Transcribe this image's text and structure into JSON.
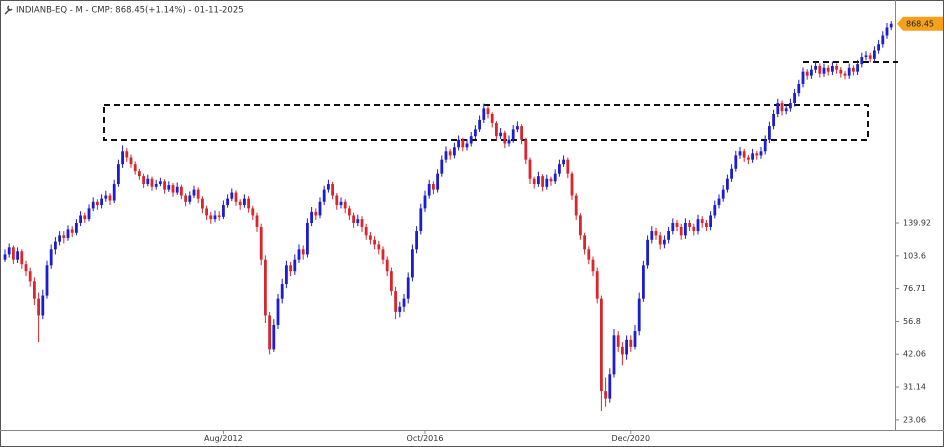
{
  "chart_data": {
    "type": "candlestick",
    "title": "INDIANB-EQ - M - CMP: 868.45(+1.14%) - 01-11-2025",
    "log_scale": true,
    "up_color": "#1c1cd0",
    "down_color": "#d8262c",
    "last_price_color": "#f5a11a",
    "ylim": [
      21.4,
      1060
    ],
    "yticks": [
      23.06,
      31.14,
      42.06,
      56.8,
      76.71,
      103.6,
      139.92
    ],
    "categories": [
      null,
      null,
      null,
      null,
      null,
      null,
      null,
      null,
      null,
      null,
      null,
      null,
      null,
      null,
      null,
      null,
      null,
      null,
      null,
      null,
      null,
      null,
      null,
      null,
      null,
      null,
      null,
      null,
      null,
      null,
      null,
      null,
      null,
      null,
      null,
      null,
      null,
      null,
      null,
      null,
      null,
      null,
      null,
      null,
      null,
      null,
      null,
      null,
      null,
      null,
      null,
      null,
      "Aug/2012",
      null,
      null,
      null,
      null,
      null,
      null,
      null,
      null,
      null,
      null,
      null,
      null,
      null,
      null,
      null,
      null,
      null,
      null,
      null,
      null,
      null,
      null,
      null,
      null,
      null,
      null,
      null,
      null,
      null,
      null,
      null,
      null,
      null,
      null,
      null,
      null,
      null,
      null,
      null,
      null,
      null,
      null,
      null,
      null,
      null,
      null,
      null,
      "Oct/2016",
      null,
      null,
      null,
      null,
      null,
      null,
      null,
      null,
      null,
      null,
      null,
      null,
      null,
      null,
      null,
      null,
      null,
      null,
      null,
      null,
      null,
      null,
      null,
      null,
      null,
      null,
      null,
      null,
      null,
      null,
      null,
      null,
      null,
      null,
      null,
      null,
      null,
      null,
      null,
      null,
      null,
      null,
      null,
      null,
      null,
      null,
      null,
      null,
      "Dec/2020",
      null,
      null,
      null,
      null,
      null,
      null,
      null,
      null,
      null,
      null,
      null,
      null,
      null,
      null,
      null,
      null,
      null,
      null,
      null,
      null,
      null,
      null,
      null,
      null,
      null,
      null,
      null,
      null,
      null,
      null,
      null,
      null,
      null,
      null,
      null,
      null,
      null,
      null,
      null,
      null,
      null,
      null,
      null,
      null,
      null,
      null,
      null,
      null,
      null,
      null,
      null,
      null,
      null,
      null,
      null,
      null,
      null,
      null
    ],
    "ohlc": [
      [
        100,
        110,
        98,
        105
      ],
      [
        105,
        116,
        102,
        112
      ],
      [
        112,
        114,
        96,
        100
      ],
      [
        100,
        112,
        97,
        108
      ],
      [
        108,
        110,
        92,
        96
      ],
      [
        96,
        99,
        86,
        90
      ],
      [
        90,
        93,
        78,
        82
      ],
      [
        82,
        85,
        66,
        70
      ],
      [
        70,
        74,
        47,
        60
      ],
      [
        60,
        76,
        58,
        72
      ],
      [
        72,
        99,
        70,
        95
      ],
      [
        95,
        115,
        92,
        110
      ],
      [
        110,
        123,
        105,
        118
      ],
      [
        118,
        130,
        114,
        125
      ],
      [
        125,
        130,
        116,
        122
      ],
      [
        122,
        137,
        119,
        132
      ],
      [
        132,
        136,
        123,
        128
      ],
      [
        128,
        145,
        125,
        140
      ],
      [
        140,
        156,
        136,
        150
      ],
      [
        150,
        154,
        140,
        145
      ],
      [
        145,
        166,
        142,
        160
      ],
      [
        160,
        177,
        156,
        170
      ],
      [
        170,
        174,
        158,
        165
      ],
      [
        165,
        182,
        160,
        175
      ],
      [
        175,
        188,
        170,
        180
      ],
      [
        180,
        184,
        165,
        172
      ],
      [
        172,
        208,
        168,
        200
      ],
      [
        200,
        250,
        195,
        240
      ],
      [
        240,
        285,
        232,
        270
      ],
      [
        270,
        278,
        245,
        255
      ],
      [
        255,
        262,
        232,
        240
      ],
      [
        240,
        246,
        218,
        225
      ],
      [
        225,
        230,
        208,
        215
      ],
      [
        215,
        220,
        193,
        200
      ],
      [
        200,
        218,
        196,
        210
      ],
      [
        210,
        214,
        188,
        195
      ],
      [
        195,
        208,
        190,
        200
      ],
      [
        200,
        212,
        196,
        205
      ],
      [
        205,
        209,
        183,
        190
      ],
      [
        190,
        205,
        186,
        198
      ],
      [
        198,
        202,
        178,
        185
      ],
      [
        185,
        203,
        181,
        195
      ],
      [
        195,
        199,
        174,
        180
      ],
      [
        180,
        184,
        163,
        170
      ],
      [
        170,
        187,
        166,
        180
      ],
      [
        180,
        197,
        176,
        190
      ],
      [
        190,
        194,
        168,
        175
      ],
      [
        175,
        179,
        153,
        160
      ],
      [
        160,
        164,
        144,
        150
      ],
      [
        150,
        155,
        139,
        145
      ],
      [
        145,
        157,
        141,
        150
      ],
      [
        150,
        156,
        143,
        148
      ],
      [
        148,
        172,
        145,
        165
      ],
      [
        165,
        182,
        161,
        175
      ],
      [
        175,
        192,
        171,
        185
      ],
      [
        185,
        189,
        164,
        170
      ],
      [
        170,
        174,
        158,
        165
      ],
      [
        165,
        182,
        161,
        175
      ],
      [
        175,
        179,
        154,
        160
      ],
      [
        160,
        164,
        144,
        150
      ],
      [
        150,
        154,
        129,
        135
      ],
      [
        135,
        139,
        95,
        100
      ],
      [
        100,
        104,
        56,
        60
      ],
      [
        60,
        62,
        42,
        44
      ],
      [
        44,
        58,
        43,
        55
      ],
      [
        55,
        73,
        53,
        70
      ],
      [
        70,
        84,
        67,
        80
      ],
      [
        80,
        99,
        77,
        95
      ],
      [
        95,
        98,
        86,
        90
      ],
      [
        90,
        105,
        87,
        100
      ],
      [
        100,
        115,
        97,
        110
      ],
      [
        110,
        114,
        100,
        105
      ],
      [
        105,
        146,
        102,
        140
      ],
      [
        140,
        162,
        136,
        155
      ],
      [
        155,
        160,
        144,
        150
      ],
      [
        150,
        177,
        146,
        170
      ],
      [
        170,
        197,
        165,
        190
      ],
      [
        190,
        208,
        185,
        200
      ],
      [
        200,
        204,
        174,
        180
      ],
      [
        180,
        184,
        158,
        165
      ],
      [
        165,
        177,
        160,
        170
      ],
      [
        170,
        174,
        153,
        160
      ],
      [
        160,
        164,
        144,
        150
      ],
      [
        150,
        154,
        134,
        140
      ],
      [
        140,
        151,
        136,
        145
      ],
      [
        145,
        149,
        129,
        135
      ],
      [
        135,
        139,
        120,
        125
      ],
      [
        125,
        129,
        115,
        120
      ],
      [
        120,
        124,
        110,
        115
      ],
      [
        115,
        119,
        105,
        110
      ],
      [
        110,
        113,
        96,
        100
      ],
      [
        100,
        103,
        86,
        90
      ],
      [
        90,
        93,
        72,
        75
      ],
      [
        75,
        78,
        58,
        62
      ],
      [
        62,
        68,
        59,
        65
      ],
      [
        65,
        73,
        62,
        70
      ],
      [
        70,
        89,
        67,
        85
      ],
      [
        85,
        115,
        82,
        110
      ],
      [
        110,
        136,
        106,
        130
      ],
      [
        130,
        167,
        126,
        160
      ],
      [
        160,
        188,
        155,
        180
      ],
      [
        180,
        208,
        175,
        200
      ],
      [
        200,
        205,
        182,
        190
      ],
      [
        190,
        229,
        185,
        220
      ],
      [
        220,
        260,
        214,
        250
      ],
      [
        250,
        282,
        243,
        270
      ],
      [
        270,
        276,
        250,
        260
      ],
      [
        260,
        292,
        253,
        280
      ],
      [
        280,
        312,
        272,
        300
      ],
      [
        300,
        306,
        270,
        280
      ],
      [
        280,
        302,
        272,
        290
      ],
      [
        290,
        322,
        282,
        310
      ],
      [
        310,
        343,
        302,
        330
      ],
      [
        330,
        375,
        322,
        360
      ],
      [
        360,
        418,
        350,
        400
      ],
      [
        400,
        408,
        365,
        380
      ],
      [
        380,
        386,
        336,
        350
      ],
      [
        350,
        356,
        298,
        310
      ],
      [
        310,
        334,
        302,
        320
      ],
      [
        320,
        326,
        278,
        290
      ],
      [
        290,
        312,
        282,
        300
      ],
      [
        300,
        343,
        292,
        330
      ],
      [
        330,
        355,
        322,
        340
      ],
      [
        340,
        346,
        288,
        300
      ],
      [
        300,
        306,
        240,
        250
      ],
      [
        250,
        255,
        200,
        210
      ],
      [
        210,
        214,
        192,
        200
      ],
      [
        200,
        224,
        195,
        215
      ],
      [
        215,
        219,
        187,
        195
      ],
      [
        195,
        218,
        190,
        210
      ],
      [
        210,
        214,
        197,
        205
      ],
      [
        205,
        229,
        200,
        220
      ],
      [
        220,
        250,
        214,
        240
      ],
      [
        240,
        260,
        234,
        250
      ],
      [
        250,
        255,
        211,
        220
      ],
      [
        220,
        224,
        173,
        180
      ],
      [
        180,
        184,
        144,
        150
      ],
      [
        150,
        153,
        120,
        125
      ],
      [
        125,
        128,
        105,
        110
      ],
      [
        110,
        113,
        96,
        100
      ],
      [
        100,
        103,
        86,
        90
      ],
      [
        90,
        93,
        67,
        70
      ],
      [
        70,
        72,
        25,
        30
      ],
      [
        30,
        34,
        26,
        28
      ],
      [
        28,
        37,
        27,
        35
      ],
      [
        35,
        53,
        34,
        50
      ],
      [
        50,
        52,
        43,
        45
      ],
      [
        45,
        47,
        38,
        42
      ],
      [
        42,
        50,
        40,
        48
      ],
      [
        48,
        50,
        43,
        45
      ],
      [
        45,
        55,
        44,
        52
      ],
      [
        52,
        74,
        50,
        70
      ],
      [
        70,
        99,
        68,
        95
      ],
      [
        95,
        125,
        92,
        120
      ],
      [
        120,
        136,
        116,
        130
      ],
      [
        130,
        134,
        120,
        125
      ],
      [
        125,
        129,
        110,
        115
      ],
      [
        115,
        125,
        111,
        120
      ],
      [
        120,
        135,
        116,
        130
      ],
      [
        130,
        146,
        126,
        140
      ],
      [
        140,
        144,
        130,
        135
      ],
      [
        135,
        139,
        120,
        125
      ],
      [
        125,
        146,
        121,
        140
      ],
      [
        140,
        144,
        130,
        135
      ],
      [
        135,
        139,
        125,
        130
      ],
      [
        130,
        151,
        126,
        145
      ],
      [
        145,
        149,
        134,
        140
      ],
      [
        140,
        144,
        130,
        135
      ],
      [
        135,
        156,
        131,
        150
      ],
      [
        150,
        172,
        146,
        165
      ],
      [
        165,
        182,
        160,
        175
      ],
      [
        175,
        198,
        170,
        190
      ],
      [
        190,
        218,
        185,
        210
      ],
      [
        210,
        240,
        204,
        230
      ],
      [
        230,
        271,
        224,
        260
      ],
      [
        260,
        281,
        252,
        270
      ],
      [
        270,
        276,
        245,
        255
      ],
      [
        255,
        261,
        240,
        250
      ],
      [
        250,
        276,
        243,
        265
      ],
      [
        265,
        271,
        250,
        260
      ],
      [
        260,
        281,
        252,
        270
      ],
      [
        270,
        312,
        262,
        300
      ],
      [
        300,
        354,
        291,
        340
      ],
      [
        340,
        395,
        330,
        380
      ],
      [
        380,
        437,
        369,
        420
      ],
      [
        420,
        430,
        375,
        390
      ],
      [
        390,
        416,
        379,
        400
      ],
      [
        400,
        437,
        388,
        420
      ],
      [
        420,
        478,
        407,
        460
      ],
      [
        460,
        520,
        446,
        500
      ],
      [
        500,
        582,
        485,
        560
      ],
      [
        560,
        573,
        520,
        540
      ],
      [
        540,
        593,
        524,
        570
      ],
      [
        570,
        614,
        553,
        590
      ],
      [
        590,
        604,
        530,
        550
      ],
      [
        550,
        603,
        534,
        580
      ],
      [
        580,
        594,
        540,
        560
      ],
      [
        560,
        614,
        543,
        590
      ],
      [
        590,
        604,
        550,
        570
      ],
      [
        570,
        584,
        530,
        550
      ],
      [
        550,
        563,
        522,
        540
      ],
      [
        540,
        603,
        524,
        580
      ],
      [
        580,
        594,
        540,
        560
      ],
      [
        560,
        624,
        543,
        600
      ],
      [
        600,
        666,
        582,
        640
      ],
      [
        640,
        676,
        621,
        650
      ],
      [
        650,
        665,
        610,
        630
      ],
      [
        630,
        707,
        611,
        680
      ],
      [
        680,
        749,
        660,
        720
      ],
      [
        720,
        811,
        698,
        780
      ],
      [
        780,
        874,
        757,
        840
      ],
      [
        840,
        890,
        820,
        868.45
      ]
    ]
  }
}
